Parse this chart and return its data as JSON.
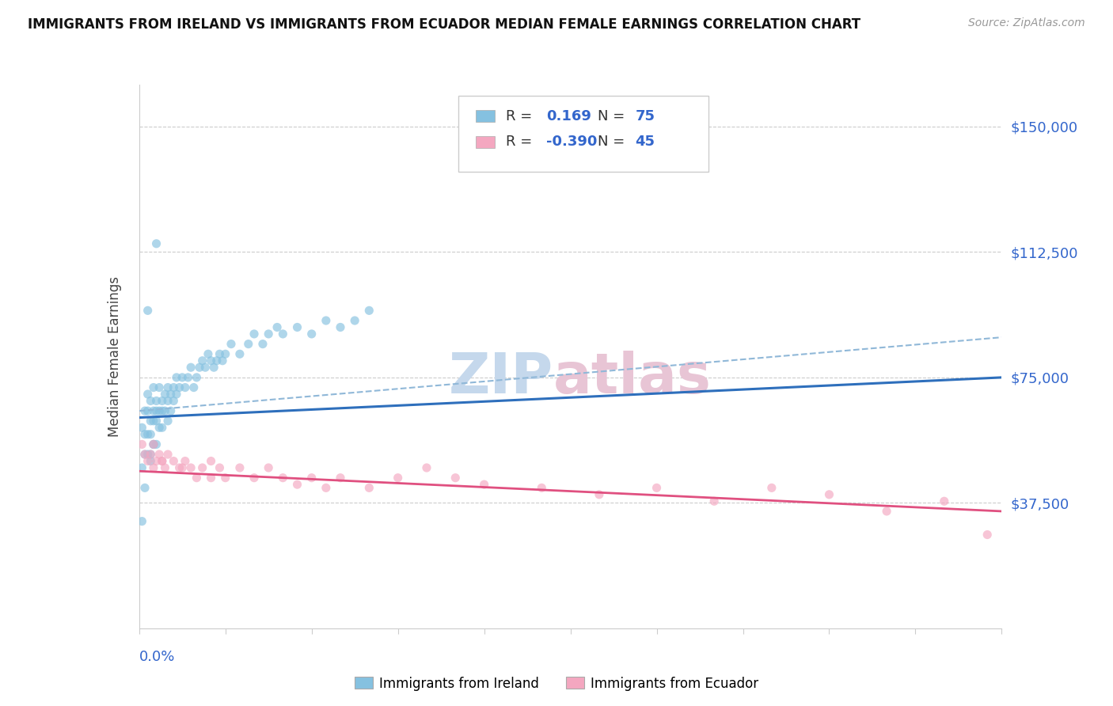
{
  "title": "IMMIGRANTS FROM IRELAND VS IMMIGRANTS FROM ECUADOR MEDIAN FEMALE EARNINGS CORRELATION CHART",
  "source": "Source: ZipAtlas.com",
  "ylabel": "Median Female Earnings",
  "xlim": [
    0.0,
    0.3
  ],
  "ylim": [
    0,
    162500
  ],
  "ireland_R": "0.169",
  "ireland_N": "75",
  "ecuador_R": "-0.390",
  "ecuador_N": "45",
  "ireland_color": "#85c1e0",
  "ecuador_color": "#f4a7c0",
  "ireland_line_color": "#2e6fbc",
  "ecuador_line_color": "#e05080",
  "dashed_line_color": "#90b8d8",
  "watermark_zip_color": "#c5d8ec",
  "watermark_atlas_color": "#e8c5d5",
  "legend_ireland_label": "Immigrants from Ireland",
  "legend_ecuador_label": "Immigrants from Ecuador",
  "ytick_vals": [
    0,
    37500,
    75000,
    112500,
    150000
  ],
  "ytick_labels_right": [
    "",
    "$37,500",
    "$75,000",
    "$112,500",
    "$150,000"
  ],
  "ireland_x": [
    0.001,
    0.001,
    0.002,
    0.002,
    0.002,
    0.003,
    0.003,
    0.003,
    0.003,
    0.004,
    0.004,
    0.004,
    0.004,
    0.005,
    0.005,
    0.005,
    0.005,
    0.006,
    0.006,
    0.006,
    0.006,
    0.007,
    0.007,
    0.007,
    0.008,
    0.008,
    0.008,
    0.009,
    0.009,
    0.01,
    0.01,
    0.01,
    0.011,
    0.011,
    0.012,
    0.012,
    0.013,
    0.013,
    0.014,
    0.015,
    0.016,
    0.017,
    0.018,
    0.019,
    0.02,
    0.021,
    0.022,
    0.023,
    0.024,
    0.025,
    0.026,
    0.027,
    0.028,
    0.029,
    0.03,
    0.032,
    0.035,
    0.038,
    0.04,
    0.043,
    0.045,
    0.048,
    0.05,
    0.055,
    0.06,
    0.065,
    0.07,
    0.075,
    0.08,
    0.003,
    0.006,
    0.002,
    0.001,
    0.004,
    0.005
  ],
  "ireland_y": [
    60000,
    48000,
    65000,
    58000,
    52000,
    70000,
    65000,
    58000,
    52000,
    68000,
    62000,
    58000,
    52000,
    72000,
    65000,
    62000,
    55000,
    68000,
    65000,
    62000,
    55000,
    72000,
    65000,
    60000,
    68000,
    65000,
    60000,
    70000,
    65000,
    72000,
    68000,
    62000,
    70000,
    65000,
    72000,
    68000,
    75000,
    70000,
    72000,
    75000,
    72000,
    75000,
    78000,
    72000,
    75000,
    78000,
    80000,
    78000,
    82000,
    80000,
    78000,
    80000,
    82000,
    80000,
    82000,
    85000,
    82000,
    85000,
    88000,
    85000,
    88000,
    90000,
    88000,
    90000,
    88000,
    92000,
    90000,
    92000,
    95000,
    95000,
    115000,
    42000,
    32000,
    50000,
    55000
  ],
  "ecuador_x": [
    0.001,
    0.002,
    0.003,
    0.004,
    0.005,
    0.005,
    0.006,
    0.007,
    0.008,
    0.009,
    0.01,
    0.012,
    0.014,
    0.016,
    0.018,
    0.02,
    0.022,
    0.025,
    0.028,
    0.03,
    0.035,
    0.04,
    0.045,
    0.05,
    0.055,
    0.06,
    0.065,
    0.07,
    0.08,
    0.09,
    0.1,
    0.11,
    0.12,
    0.14,
    0.16,
    0.18,
    0.2,
    0.22,
    0.24,
    0.26,
    0.28,
    0.295,
    0.025,
    0.015,
    0.008
  ],
  "ecuador_y": [
    55000,
    52000,
    50000,
    52000,
    55000,
    48000,
    50000,
    52000,
    50000,
    48000,
    52000,
    50000,
    48000,
    50000,
    48000,
    45000,
    48000,
    50000,
    48000,
    45000,
    48000,
    45000,
    48000,
    45000,
    43000,
    45000,
    42000,
    45000,
    42000,
    45000,
    48000,
    45000,
    43000,
    42000,
    40000,
    42000,
    38000,
    42000,
    40000,
    35000,
    38000,
    28000,
    45000,
    48000,
    50000
  ]
}
